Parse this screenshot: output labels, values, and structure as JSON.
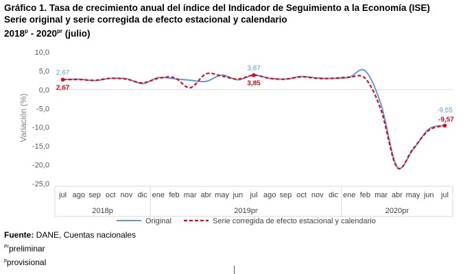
{
  "title": {
    "line1": "Gráfico 1. Tasa de crecimiento anual del índice del Indicador de Seguimiento a la Economía (ISE)",
    "line2": "Serie original y serie corregida de efecto estacional y calendario",
    "line3_a": "2018",
    "line3_sup_a": "p",
    "line3_b": " - 2020",
    "line3_sup_b": "pr",
    "line3_c": " (julio)"
  },
  "chart_data": {
    "type": "line",
    "title": "Gráfico 1. Tasa de crecimiento anual del índice del Indicador de Seguimiento a la Economía (ISE)",
    "ylabel": "Variación (%)",
    "ylim": [
      -25,
      10
    ],
    "yticks": [
      10,
      5,
      0,
      -5,
      -10,
      -15,
      -20,
      -25
    ],
    "ytick_labels": [
      "10,0",
      "5,0",
      "0,0",
      "-5,0",
      "-10,0",
      "-15,0",
      "-20,0",
      "-25,0"
    ],
    "grid": false,
    "legend_position": "bottom",
    "categories": [
      "jul",
      "ago",
      "sep",
      "oct",
      "nov",
      "dic",
      "ene",
      "feb",
      "mar",
      "abr",
      "may",
      "jun",
      "jul",
      "ago",
      "sep",
      "oct",
      "nov",
      "dic",
      "ene",
      "feb",
      "mar",
      "abr",
      "may",
      "jun",
      "jul"
    ],
    "year_groups": [
      {
        "label": "2018p",
        "start": 0,
        "end": 5
      },
      {
        "label": "2019pr",
        "start": 6,
        "end": 17
      },
      {
        "label": "2020pr",
        "start": 18,
        "end": 24
      }
    ],
    "series": [
      {
        "name": "Original",
        "color": "#5B9BD5",
        "style": "solid",
        "values": [
          2.67,
          2.8,
          2.4,
          3.0,
          2.9,
          1.6,
          3.2,
          2.9,
          2.5,
          2.2,
          3.9,
          2.6,
          3.87,
          3.0,
          2.8,
          3.5,
          3.1,
          3.0,
          3.3,
          5.0,
          -4.0,
          -20.5,
          -16.0,
          -10.5,
          -9.55
        ]
      },
      {
        "name": "Serie corregida de efecto estacional y calendario",
        "color": "#E8001C",
        "style": "dashed",
        "values": [
          2.67,
          2.7,
          2.5,
          3.0,
          2.8,
          1.8,
          3.0,
          3.2,
          0.5,
          4.2,
          3.6,
          2.8,
          3.85,
          3.0,
          2.8,
          3.4,
          3.0,
          3.0,
          3.3,
          3.0,
          -5.5,
          -20.7,
          -15.8,
          -10.8,
          -9.57
        ]
      }
    ],
    "annotations": [
      {
        "series": 0,
        "index": 0,
        "text": "2,67",
        "pos": "above"
      },
      {
        "series": 1,
        "index": 0,
        "text": "2,67",
        "pos": "below"
      },
      {
        "series": 0,
        "index": 12,
        "text": "3,87",
        "pos": "above"
      },
      {
        "series": 1,
        "index": 12,
        "text": "3,85",
        "pos": "below"
      },
      {
        "series": 0,
        "index": 24,
        "text": "-9,55",
        "pos": "above"
      },
      {
        "series": 1,
        "index": 24,
        "text": "-9,57",
        "pos": "above-right"
      }
    ]
  },
  "footer": {
    "source_label": "Fuente:",
    "source_text": " DANE, Cuentas nacionales",
    "note1_sup": "Pr",
    "note1_text": "preliminar",
    "note2_sup": "p",
    "note2_text": "provisional"
  }
}
